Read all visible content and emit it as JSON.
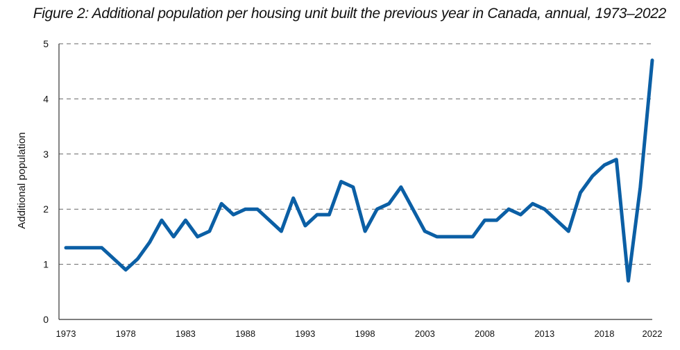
{
  "chart_data": {
    "type": "line",
    "title": "Figure 2: Additional population per housing unit built the previous year in Canada, annual, 1973–2022",
    "xlabel": "",
    "ylabel": "Additional population",
    "ylim": [
      0,
      5
    ],
    "xlim": [
      1973,
      2022
    ],
    "yticks": [
      "0",
      "1",
      "2",
      "3",
      "4",
      "5"
    ],
    "xticks": [
      "1973",
      "1978",
      "1983",
      "1988",
      "1993",
      "1998",
      "2003",
      "2008",
      "2013",
      "2018",
      "2022"
    ],
    "grid": "horizontal dashed",
    "line_color": "#0b5fa5",
    "series": [
      {
        "x": [
          1973,
          1974,
          1975,
          1976,
          1977,
          1978,
          1979,
          1980,
          1981,
          1982,
          1983,
          1984,
          1985,
          1986,
          1987,
          1988,
          1989,
          1990,
          1991,
          1992,
          1993,
          1994,
          1995,
          1996,
          1997,
          1998,
          1999,
          2000,
          2001,
          2002,
          2003,
          2004,
          2005,
          2006,
          2007,
          2008,
          2009,
          2010,
          2011,
          2012,
          2013,
          2014,
          2015,
          2016,
          2017,
          2018,
          2019,
          2020,
          2021,
          2022
        ],
        "values": [
          1.3,
          1.3,
          1.3,
          1.3,
          1.1,
          0.9,
          1.1,
          1.4,
          1.8,
          1.5,
          1.8,
          1.5,
          1.6,
          2.1,
          1.9,
          2.0,
          2.0,
          1.8,
          1.6,
          2.2,
          1.7,
          1.9,
          1.9,
          2.5,
          2.4,
          1.6,
          2.0,
          2.1,
          2.4,
          2.0,
          1.6,
          1.5,
          1.5,
          1.5,
          1.5,
          1.8,
          1.8,
          2.0,
          1.9,
          2.1,
          2.0,
          1.8,
          1.6,
          2.3,
          2.6,
          2.8,
          2.9,
          0.7,
          2.4,
          4.7
        ]
      }
    ]
  }
}
